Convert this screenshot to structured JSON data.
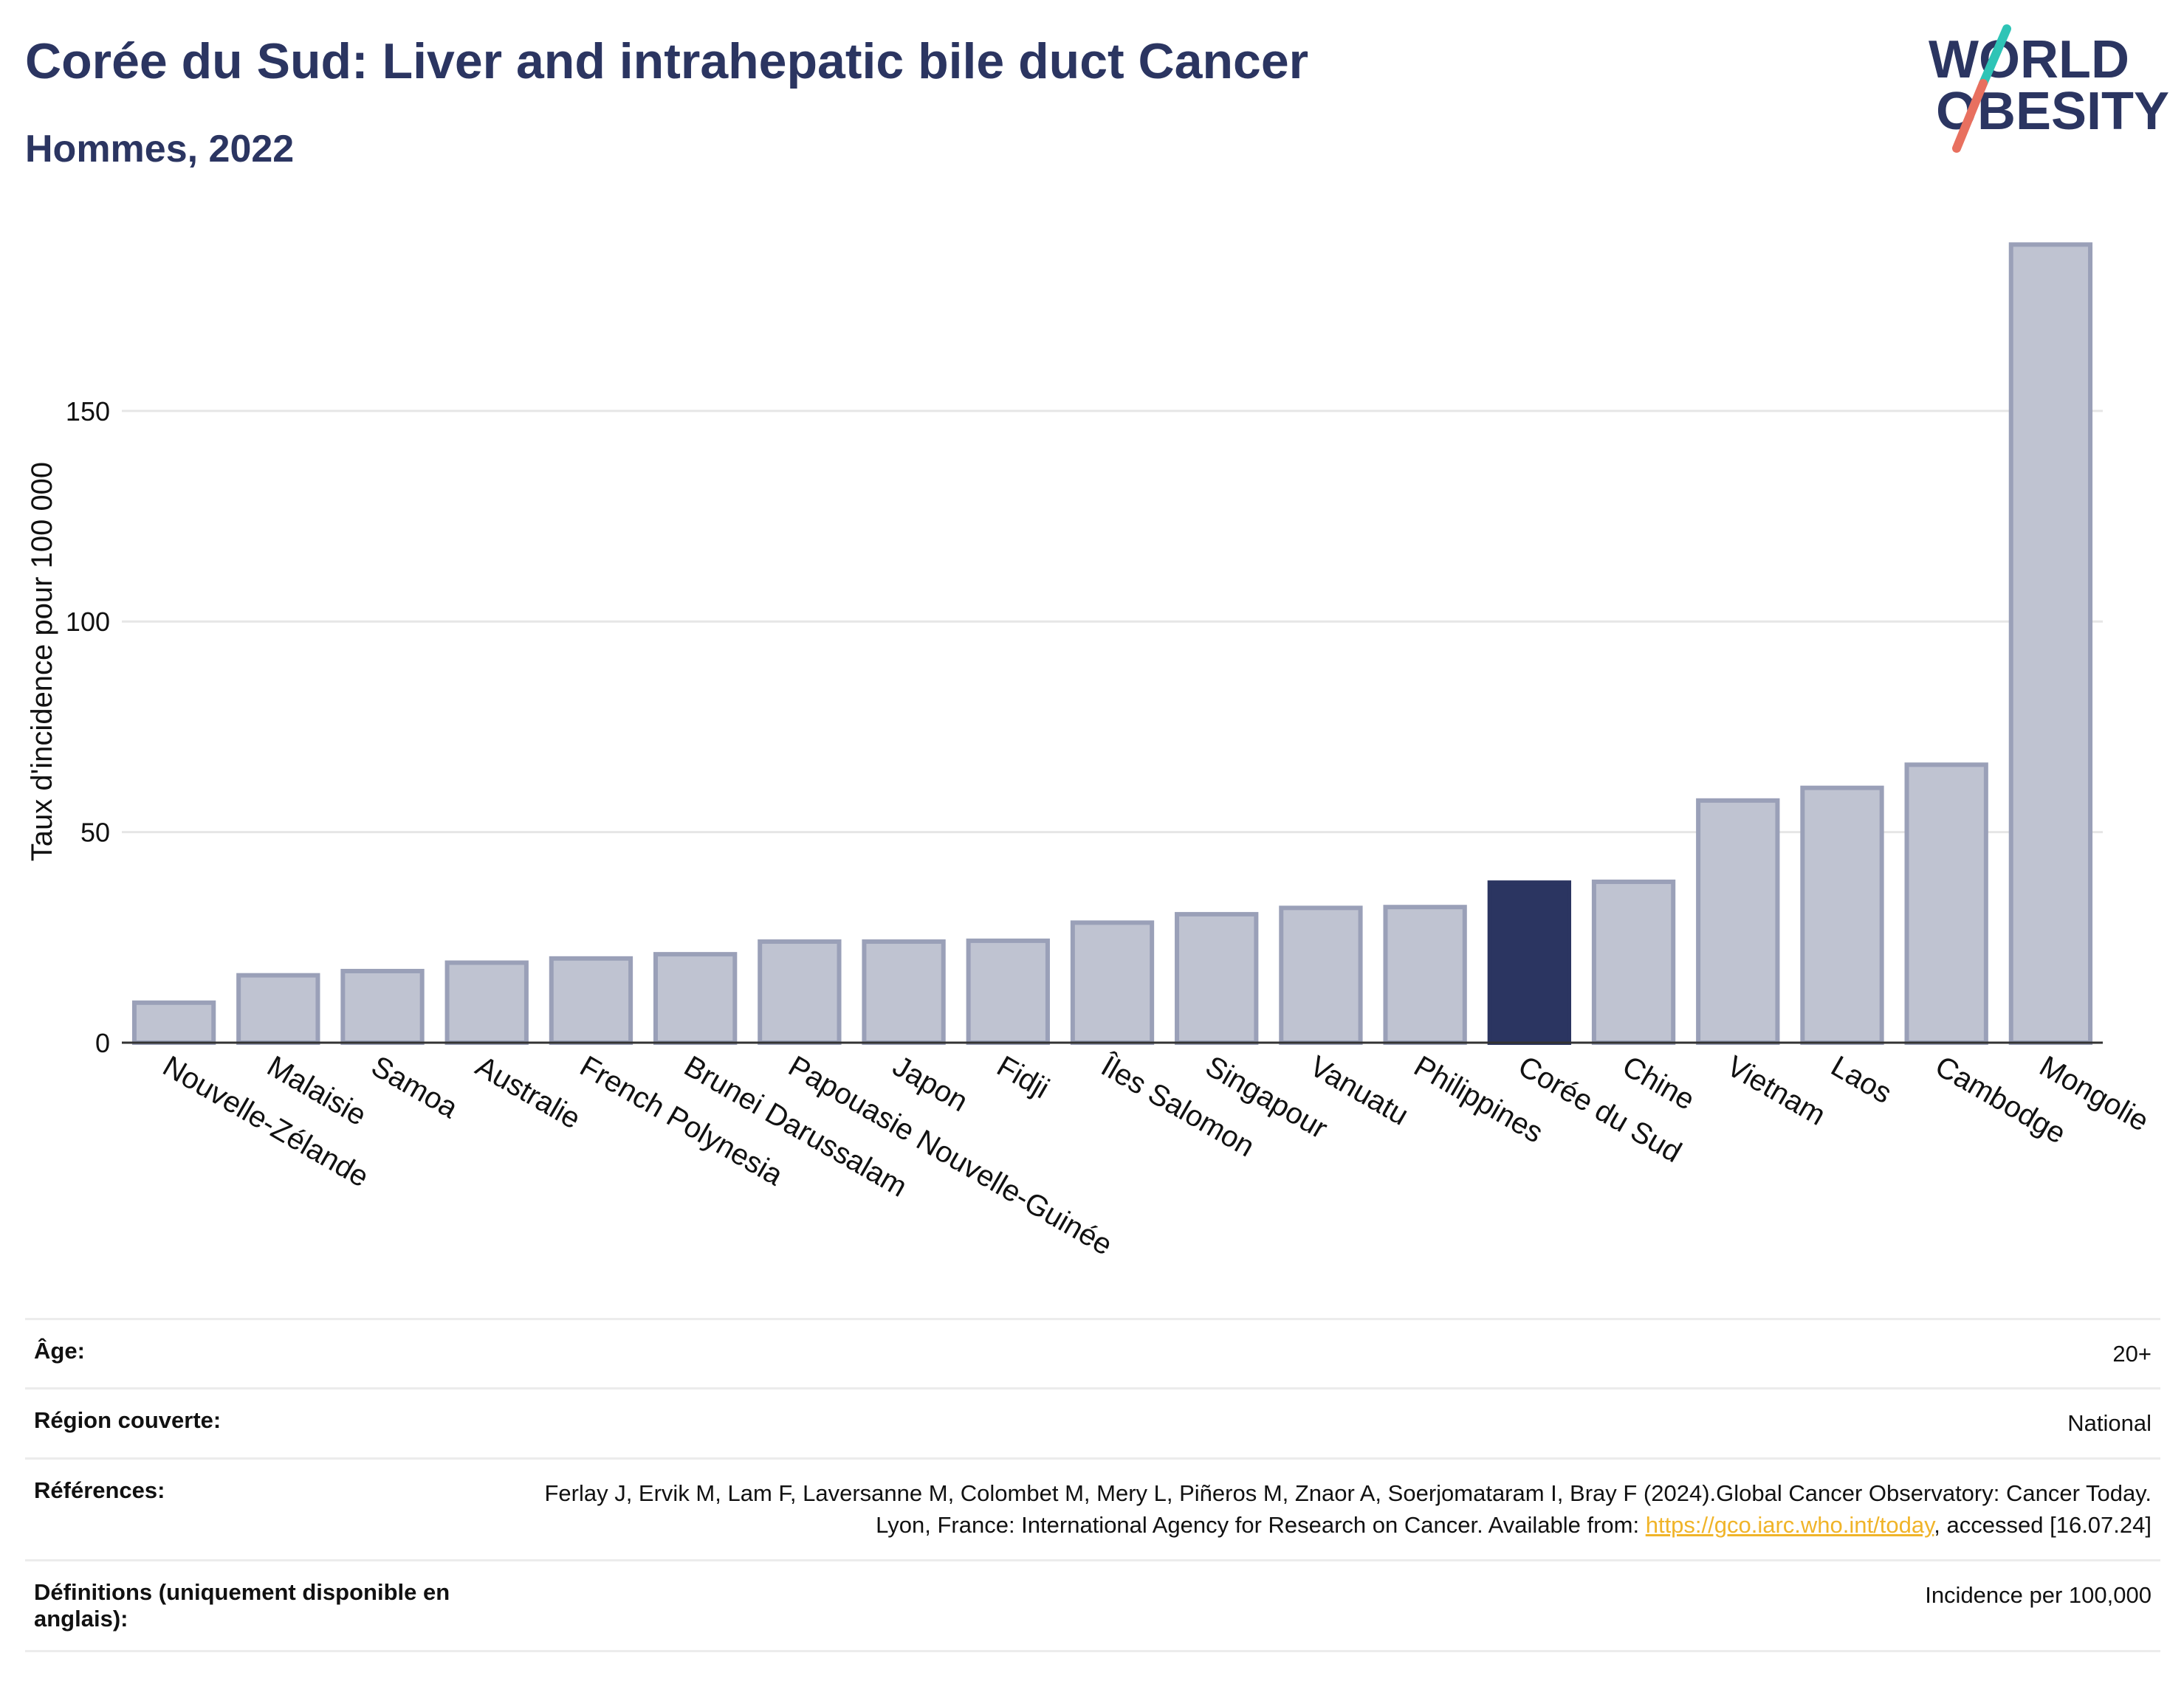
{
  "title": "Corée du Sud: Liver and intrahepatic bile duct Cancer",
  "subtitle": "Hommes, 2022",
  "logo": {
    "line1": "WORLD",
    "line2": "OBESITY",
    "colors": {
      "text": "#2b3561",
      "slash_top": "#2ec4b6",
      "slash_bottom": "#e8705f"
    }
  },
  "chart_data": {
    "type": "bar",
    "ylabel": "Taux d'incidence pour 100 000",
    "xlabel": "",
    "ylim": [
      0,
      195
    ],
    "yticks": [
      0,
      50,
      100,
      150
    ],
    "grid": true,
    "highlight": "Corée du Sud",
    "colors": {
      "bar": "#bfc3d1",
      "bar_edge": "#9aa0b8",
      "highlight": "#2b3561"
    },
    "categories": [
      "Nouvelle-Zélande",
      "Malaisie",
      "Samoa",
      "Australie",
      "French Polynesia",
      "Brunei Darussalam",
      "Papouasie Nouvelle-Guinée",
      "Japon",
      "Fidji",
      "Îles Salomon",
      "Singapour",
      "Vanuatu",
      "Philippines",
      "Corée du Sud",
      "Chine",
      "Vietnam",
      "Laos",
      "Cambodge",
      "Mongolie"
    ],
    "values": [
      9.5,
      16,
      17,
      19,
      20,
      21,
      24,
      24,
      24.2,
      28.5,
      30.5,
      32,
      32.2,
      38,
      38.2,
      57.5,
      60.5,
      66,
      189.5
    ]
  },
  "meta": [
    {
      "label": "Âge:",
      "value": "20+"
    },
    {
      "label": "Région couverte:",
      "value": "National"
    },
    {
      "label": "Références:",
      "value_before": "Ferlay J, Ervik M, Lam F, Laversanne M, Colombet M, Mery L, Piñeros M, Znaor A, Soerjomataram I, Bray F (2024).Global Cancer Observatory: Cancer Today. Lyon, France: International Agency for Research on Cancer. Available from:",
      "link": "https://gco.iarc.who.int/today",
      "value_after": ", accessed [16.07.24]"
    },
    {
      "label": "Définitions (uniquement disponible en anglais):",
      "value": "Incidence per 100,000"
    }
  ]
}
